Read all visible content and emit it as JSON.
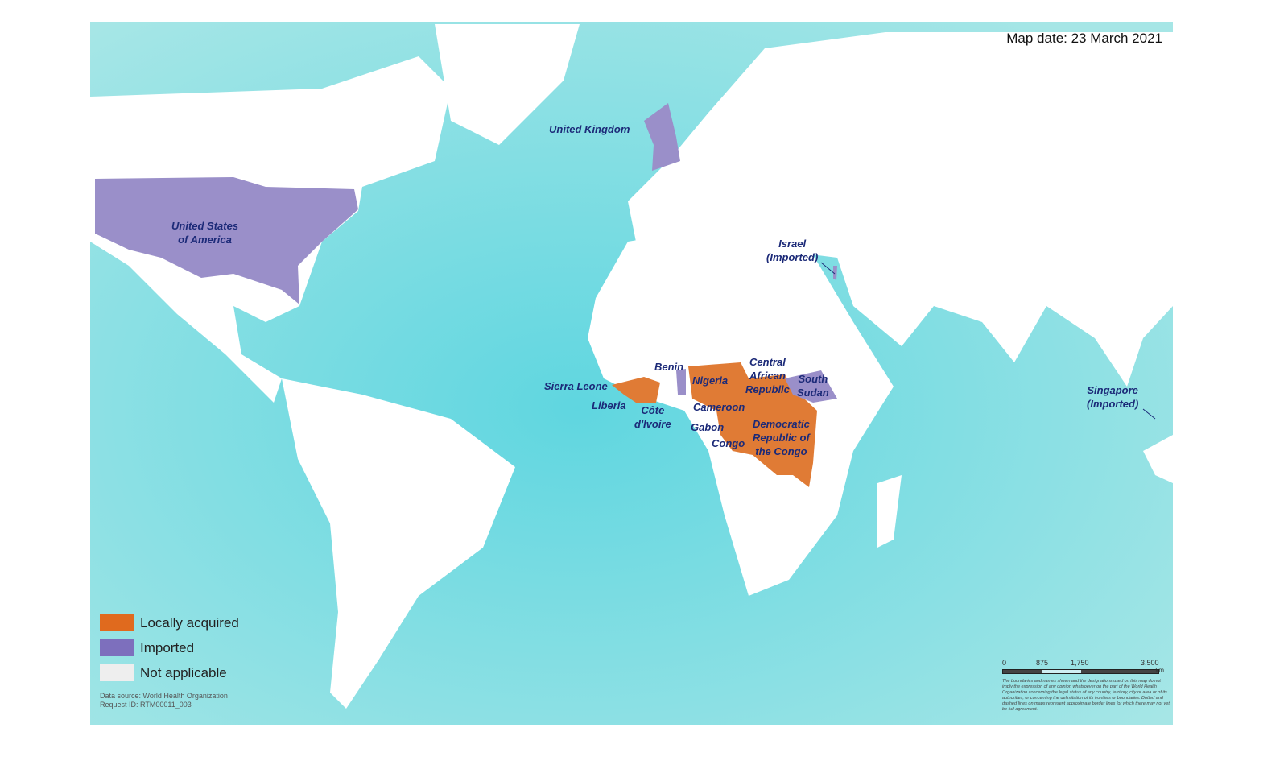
{
  "map": {
    "date_label": "Map date: 23 March 2021",
    "colors": {
      "ocean": "#7fdde3",
      "land": "#ffffff",
      "locally_acquired": "#e07b35",
      "imported": "#9a8fc9",
      "not_applicable": "#eeeeee",
      "label": "#1c2a78"
    },
    "country_labels": {
      "uk": "United Kingdom",
      "usa": [
        "United States",
        "of America"
      ],
      "israel": [
        "Israel",
        "(Imported)"
      ],
      "benin": "Benin",
      "nigeria": "Nigeria",
      "car": [
        "Central",
        "African",
        "Republic"
      ],
      "south_sudan": [
        "South",
        "Sudan"
      ],
      "sierra_leone": "Sierra Leone",
      "liberia": "Liberia",
      "cote_divoire": [
        "Côte",
        "d'Ivoire"
      ],
      "cameroon": "Cameroon",
      "gabon": "Gabon",
      "congo": "Congo",
      "drc": [
        "Democratic",
        "Republic of",
        "the Congo"
      ],
      "singapore": [
        "Singapore",
        "(Imported)"
      ]
    },
    "legend": [
      {
        "label": "Locally acquired",
        "color": "#e06a1e"
      },
      {
        "label": "Imported",
        "color": "#7d6fbd"
      },
      {
        "label": "Not applicable",
        "color": "#eeeeee"
      }
    ],
    "source": {
      "line1": "Data source: World Health Organization",
      "line2": "Request ID: RTM00011_003"
    },
    "scale": {
      "ticks": [
        "0",
        "875",
        "1,750",
        "3,500"
      ],
      "unit": "km"
    },
    "disclaimer": "The boundaries and names shown and the designations used on this map do not imply the expression of any opinion whatsoever on the part of the World Health Organization concerning the legal status of any country, territory, city or area or of its authorities, or concerning the delimitation of its frontiers or boundaries. Dotted and dashed lines on maps represent approximate border lines for which there may not yet be full agreement."
  }
}
